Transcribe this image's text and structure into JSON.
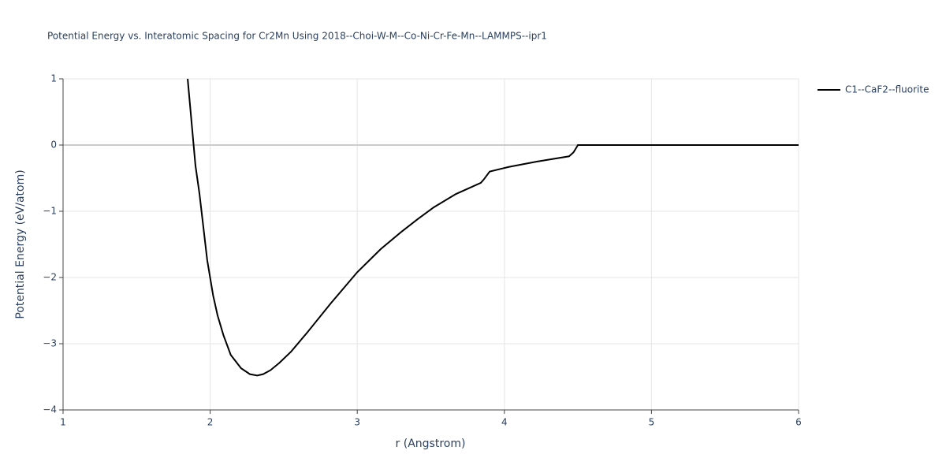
{
  "chart_data": {
    "type": "line",
    "title": "Potential Energy vs. Interatomic Spacing for Cr2Mn Using 2018--Choi-W-M--Co-Ni-Cr-Fe-Mn--LAMMPS--ipr1",
    "x_label": "r (Angstrom)",
    "y_label": "Potential Energy (eV/atom)",
    "xlim": [
      1,
      6
    ],
    "ylim": [
      -4,
      1
    ],
    "xticks": [
      1,
      2,
      3,
      4,
      5,
      6
    ],
    "yticks": [
      1,
      0,
      {
        "value": -1,
        "label": "−1"
      },
      {
        "value": -2,
        "label": "−2"
      },
      {
        "value": -3,
        "label": "−3"
      },
      {
        "value": -4,
        "label": "−4"
      }
    ],
    "grid": true,
    "legend": "top-right",
    "series": [
      {
        "name": "C1--CaF2--fluorite",
        "color": "#000000",
        "x": [
          1.847,
          1.9,
          1.927,
          1.98,
          2.02,
          2.05,
          2.09,
          2.14,
          2.21,
          2.27,
          2.32,
          2.36,
          2.41,
          2.47,
          2.55,
          2.66,
          2.82,
          3.0,
          3.16,
          3.3,
          3.41,
          3.52,
          3.67,
          3.84,
          3.86,
          3.9,
          4.03,
          4.22,
          4.44,
          4.47,
          4.5,
          6.0
        ],
        "values": [
          1.0,
          -0.31,
          -0.73,
          -1.74,
          -2.27,
          -2.57,
          -2.87,
          -3.17,
          -3.37,
          -3.46,
          -3.48,
          -3.46,
          -3.4,
          -3.29,
          -3.12,
          -2.83,
          -2.39,
          -1.92,
          -1.57,
          -1.31,
          -1.12,
          -0.94,
          -0.74,
          -0.57,
          -0.52,
          -0.4,
          -0.33,
          -0.25,
          -0.17,
          -0.11,
          0.0,
          0.0
        ]
      }
    ]
  }
}
